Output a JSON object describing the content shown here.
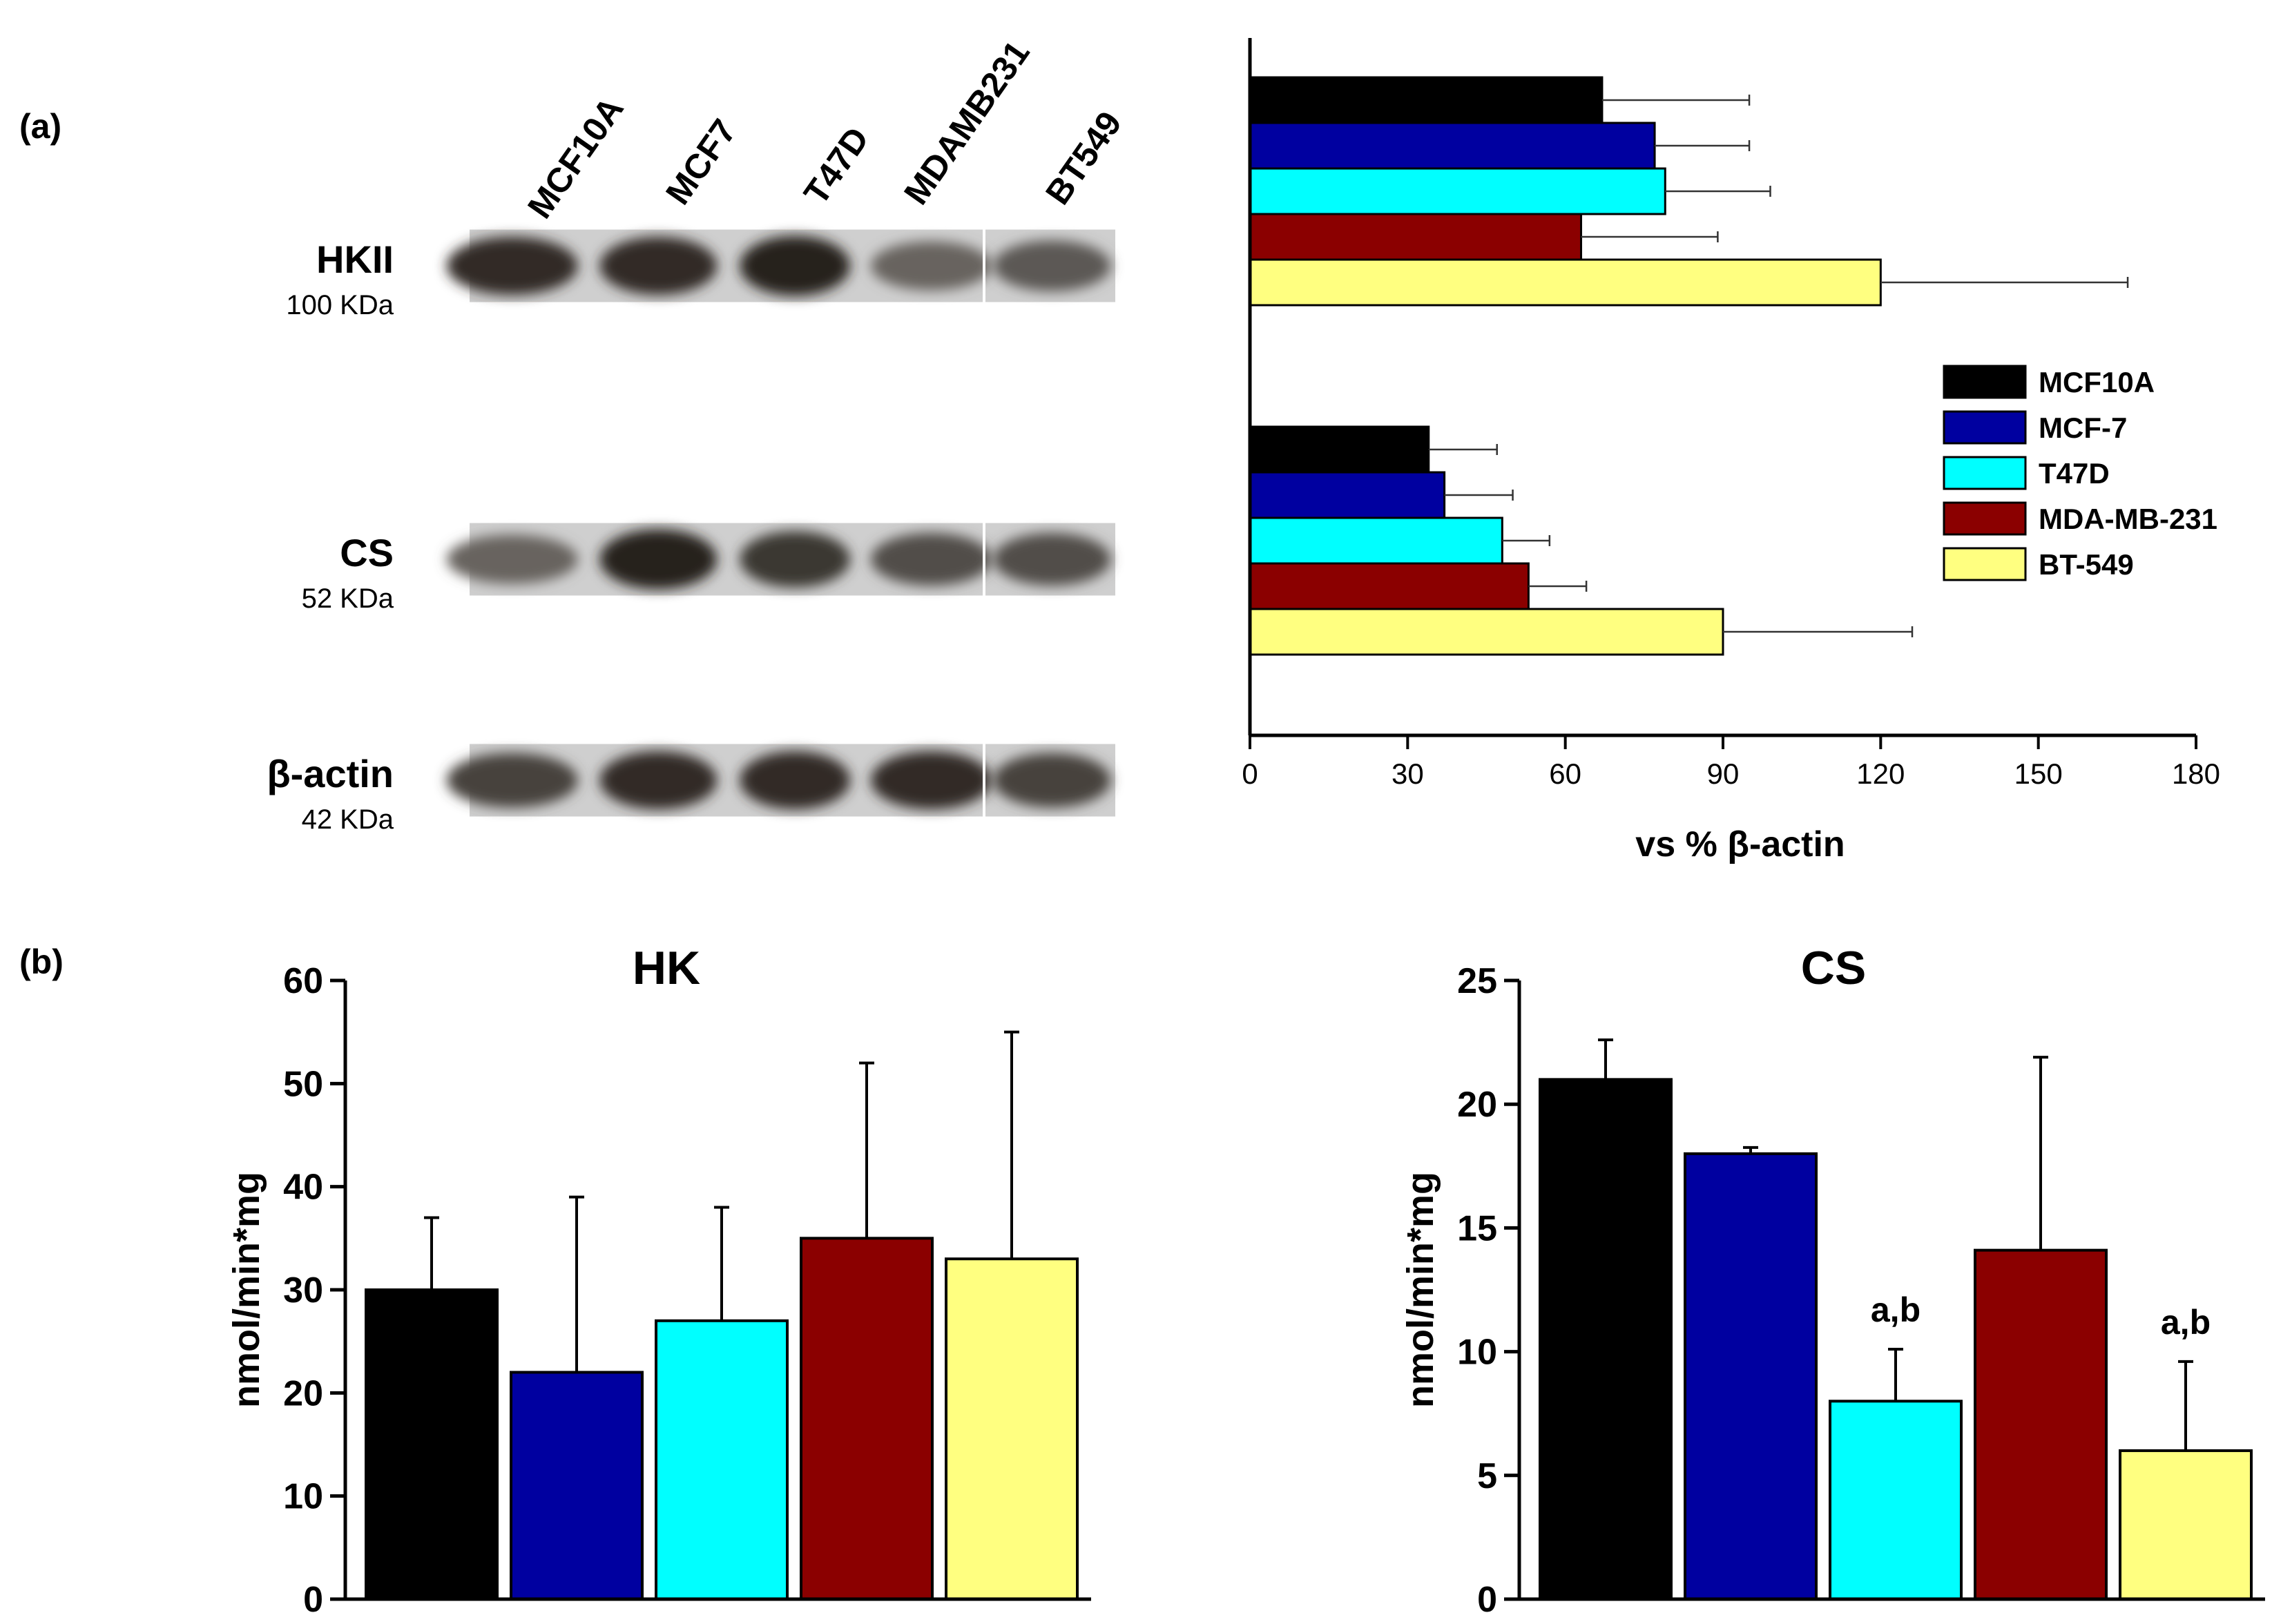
{
  "panel_a_label": "(a)",
  "panel_b_label": "(b)",
  "blot": {
    "lanes": [
      "MCF10A",
      "MCF7",
      "T47D",
      "MDAMB231",
      "BT549"
    ],
    "rows": [
      {
        "protein": "HKII",
        "size": "100 KDa",
        "intensity": [
          0.85,
          0.85,
          0.9,
          0.6,
          0.65
        ]
      },
      {
        "protein": "CS",
        "size": "52 KDa",
        "intensity": [
          0.6,
          0.9,
          0.8,
          0.7,
          0.7
        ]
      },
      {
        "protein": "β-actin",
        "size": "42 KDa",
        "intensity": [
          0.75,
          0.85,
          0.85,
          0.85,
          0.75
        ]
      }
    ]
  },
  "chart_data": [
    {
      "id": "densitometry",
      "type": "bar",
      "orientation": "horizontal",
      "groups": [
        "HKII",
        "CS"
      ],
      "series": [
        {
          "name": "MCF10A",
          "color": "#000000",
          "values": [
            67,
            34
          ],
          "errors": [
            28,
            13
          ]
        },
        {
          "name": "MCF-7",
          "color": "#0000a0",
          "values": [
            77,
            37
          ],
          "errors": [
            18,
            13
          ]
        },
        {
          "name": "T47D",
          "color": "#00ffff",
          "values": [
            79,
            48
          ],
          "errors": [
            20,
            9
          ]
        },
        {
          "name": "MDA-MB-231",
          "color": "#8b0000",
          "values": [
            63,
            53
          ],
          "errors": [
            26,
            11
          ]
        },
        {
          "name": "BT-549",
          "color": "#ffff80",
          "values": [
            120,
            90
          ],
          "errors": [
            47,
            36
          ]
        }
      ],
      "xlabel": "vs % β-actin",
      "xlim": [
        0,
        180
      ],
      "xticks": [
        0,
        30,
        60,
        90,
        120,
        150,
        180
      ],
      "legend_position": "right"
    },
    {
      "id": "hk",
      "type": "bar",
      "title": "HK",
      "categories": [
        "MCF10A",
        "MCF-7",
        "T47D",
        "MDA-MB-231",
        "BT-549"
      ],
      "colors": [
        "#000000",
        "#0000a0",
        "#00ffff",
        "#8b0000",
        "#ffff80"
      ],
      "values": [
        30,
        22,
        27,
        35,
        33
      ],
      "errors": [
        7,
        17,
        11,
        17,
        22
      ],
      "annotations": [
        "",
        "",
        "",
        "",
        ""
      ],
      "ylabel": "nmol/min*mg",
      "ylim": [
        0,
        60
      ],
      "yticks": [
        0,
        10,
        20,
        30,
        40,
        50,
        60
      ]
    },
    {
      "id": "cs",
      "type": "bar",
      "title": "CS",
      "categories": [
        "MCF10A",
        "MCF-7",
        "T47D",
        "MDA-MB-231",
        "BT-549"
      ],
      "colors": [
        "#000000",
        "#0000a0",
        "#00ffff",
        "#8b0000",
        "#ffff80"
      ],
      "values": [
        21,
        18,
        8,
        14.1,
        6
      ],
      "errors": [
        1.6,
        0.25,
        2.1,
        7.8,
        3.6
      ],
      "annotations": [
        "",
        "",
        "a,b",
        "",
        "a,b"
      ],
      "ylabel": "nmol/min*mg",
      "ylim": [
        0,
        25
      ],
      "yticks": [
        0,
        5,
        10,
        15,
        20,
        25
      ]
    }
  ]
}
